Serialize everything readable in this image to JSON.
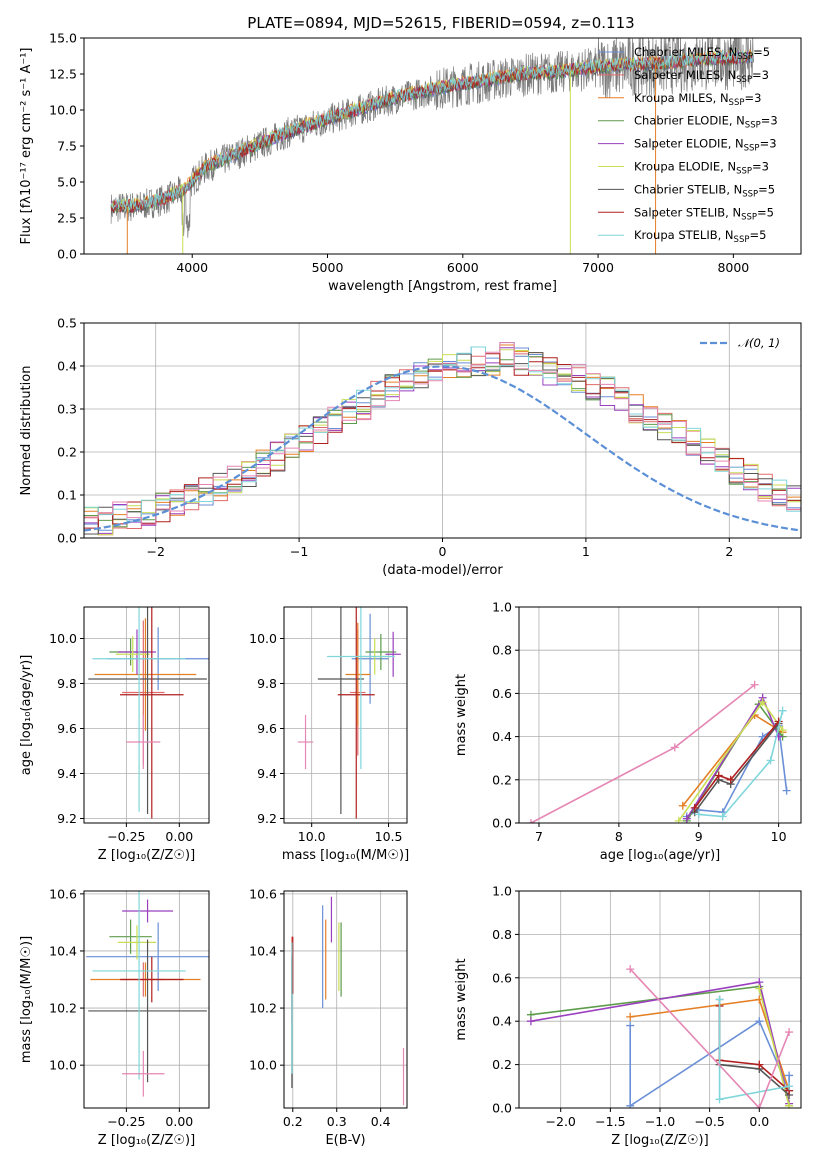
{
  "figure_title": "PLATE=0894, MJD=52615, FIBERID=0594, z=0.113",
  "colors": {
    "Chabrier MILES": "#6a8fd6",
    "Salpeter MILES": "#e06a6a",
    "Kroupa MILES": "#e57f24",
    "Chabrier ELODIE": "#5e9c4c",
    "Salpeter ELODIE": "#9a3fbf",
    "Kroupa ELODIE": "#c9de55",
    "Chabrier STELIB": "#555555",
    "Salpeter STELIB": "#b01f1f",
    "Kroupa STELIB": "#7fd6db",
    "pink": "#e586b4",
    "gaussian": "#5b8fd6"
  },
  "chart_data": [
    {
      "id": "spectrum",
      "type": "line",
      "title": "PLATE=0894, MJD=52615, FIBERID=0594, z=0.113",
      "xlabel": "wavelength [Angstrom, rest frame]",
      "ylabel": "Flux [fλ10⁻¹⁷ erg cm⁻² s⁻¹ A⁻¹]",
      "xlim": [
        3200,
        8500
      ],
      "ylim": [
        0,
        15
      ],
      "xticks": [
        "4000",
        "5000",
        "6000",
        "7000",
        "8000"
      ],
      "xtick_values": [
        4000,
        5000,
        6000,
        7000,
        8000
      ],
      "yticks": [
        "0.0",
        "2.5",
        "5.0",
        "7.5",
        "10.0",
        "12.5",
        "15.0"
      ],
      "ytick_values": [
        0,
        2.5,
        5,
        7.5,
        10,
        12.5,
        15
      ],
      "grid": false,
      "legend_position": "top-right",
      "legend": [
        {
          "label": "Chabrier MILES, N",
          "sub": "SSP",
          "tail": "=5",
          "color": "#6a8fd6"
        },
        {
          "label": "Salpeter MILES, N",
          "sub": "SSP",
          "tail": "=3",
          "color": "#e06a6a"
        },
        {
          "label": "Kroupa MILES, N",
          "sub": "SSP",
          "tail": "=3",
          "color": "#e57f24"
        },
        {
          "label": "Chabrier ELODIE, N",
          "sub": "SSP",
          "tail": "=3",
          "color": "#5e9c4c"
        },
        {
          "label": "Salpeter ELODIE, N",
          "sub": "SSP",
          "tail": "=3",
          "color": "#9a3fbf"
        },
        {
          "label": "Kroupa ELODIE, N",
          "sub": "SSP",
          "tail": "=3",
          "color": "#c9de55"
        },
        {
          "label": "Chabrier STELIB, N",
          "sub": "SSP",
          "tail": "=5",
          "color": "#555555"
        },
        {
          "label": "Salpeter STELIB, N",
          "sub": "SSP",
          "tail": "=5",
          "color": "#b01f1f"
        },
        {
          "label": "Kroupa STELIB, N",
          "sub": "SSP",
          "tail": "=5",
          "color": "#7fd6db"
        }
      ],
      "continuum": {
        "x": [
          3400,
          3600,
          3800,
          3950,
          4100,
          4300,
          4500,
          4700,
          4900,
          5100,
          5300,
          5500,
          5700,
          5900,
          6100,
          6300,
          6500,
          6700,
          6900,
          7100,
          7300,
          7500,
          7700,
          7900,
          8100
        ],
        "y": [
          3.2,
          3.3,
          3.8,
          4.5,
          6.0,
          6.8,
          7.6,
          8.4,
          9.0,
          9.6,
          10.2,
          10.8,
          11.2,
          11.6,
          11.9,
          12.2,
          12.5,
          12.6,
          12.8,
          13.0,
          13.1,
          13.2,
          13.4,
          13.5,
          13.6
        ]
      },
      "dropouts": [
        {
          "x": 3520,
          "y": 0.0
        },
        {
          "x": 3930,
          "y": 0.0
        },
        {
          "x": 6795,
          "y": 0.0
        },
        {
          "x": 7425,
          "y": 0.0
        }
      ]
    },
    {
      "id": "residuals",
      "type": "area",
      "xlabel": "(data-model)/error",
      "ylabel": "Normed distribution",
      "xlim": [
        -2.5,
        2.5
      ],
      "ylim": [
        0,
        0.5
      ],
      "xticks": [
        "−2",
        "−1",
        "0",
        "1",
        "2"
      ],
      "xtick_values": [
        -2,
        -1,
        0,
        1,
        2
      ],
      "yticks": [
        "0.0",
        "0.1",
        "0.2",
        "0.3",
        "0.4",
        "0.5"
      ],
      "ytick_values": [
        0,
        0.1,
        0.2,
        0.3,
        0.4,
        0.5
      ],
      "grid": true,
      "legend_position": "top-right",
      "legend": [
        {
          "label": "𝒩(0, 1)",
          "color": "#5b8fd6"
        }
      ],
      "bin_width": 0.1,
      "bin_start": -2.5,
      "base_hist": [
        0.04,
        0.04,
        0.05,
        0.05,
        0.06,
        0.07,
        0.08,
        0.09,
        0.11,
        0.12,
        0.14,
        0.15,
        0.17,
        0.19,
        0.21,
        0.23,
        0.25,
        0.27,
        0.29,
        0.31,
        0.33,
        0.35,
        0.37,
        0.38,
        0.39,
        0.4,
        0.4,
        0.41,
        0.41,
        0.42,
        0.41,
        0.4,
        0.39,
        0.38,
        0.37,
        0.35,
        0.34,
        0.32,
        0.3,
        0.28,
        0.26,
        0.24,
        0.22,
        0.2,
        0.18,
        0.16,
        0.14,
        0.12,
        0.11,
        0.09,
        0.08,
        0.07,
        0.06,
        0.05,
        0.04,
        0.04,
        0.03,
        0.03,
        0.03,
        0.02
      ]
    },
    {
      "id": "age_vs_Z",
      "type": "scatter",
      "xlabel": "Z [log₁₀(Z/Z☉)]",
      "ylabel": "age  [log₁₀(age/yr)]",
      "xlim": [
        -0.45,
        0.14
      ],
      "ylim": [
        9.18,
        10.14
      ],
      "xticks": [
        "−0.25",
        "0.00"
      ],
      "xtick_values": [
        -0.25,
        0.0
      ],
      "yticks": [
        "9.2",
        "9.4",
        "9.6",
        "9.8",
        "10.0"
      ],
      "ytick_values": [
        9.2,
        9.4,
        9.6,
        9.8,
        10.0
      ],
      "grid": true,
      "points": [
        {
          "x": -0.1,
          "y": 9.91,
          "xerr": 0.24,
          "yerr": 0.14,
          "color": "#6a8fd6"
        },
        {
          "x": -0.17,
          "y": 9.76,
          "xerr": 0.1,
          "yerr": 0.32,
          "color": "#e06a6a"
        },
        {
          "x": -0.16,
          "y": 9.84,
          "xerr": 0.24,
          "yerr": 0.25,
          "color": "#e57f24"
        },
        {
          "x": -0.23,
          "y": 9.94,
          "xerr": 0.1,
          "yerr": 0.06,
          "color": "#5e9c4c"
        },
        {
          "x": -0.2,
          "y": 9.94,
          "xerr": 0.09,
          "yerr": 0.1,
          "color": "#9a3fbf"
        },
        {
          "x": -0.22,
          "y": 9.93,
          "xerr": 0.08,
          "yerr": 0.08,
          "color": "#c9de55"
        },
        {
          "x": -0.15,
          "y": 9.82,
          "xerr": 0.28,
          "yerr": 0.6,
          "color": "#555555"
        },
        {
          "x": -0.13,
          "y": 9.75,
          "xerr": 0.15,
          "yerr": 0.55,
          "color": "#b01f1f"
        },
        {
          "x": -0.19,
          "y": 9.91,
          "xerr": 0.22,
          "yerr": 0.68,
          "color": "#7fd6db"
        },
        {
          "x": -0.17,
          "y": 9.54,
          "xerr": 0.08,
          "yerr": 0.12,
          "color": "#e586b4"
        }
      ]
    },
    {
      "id": "age_vs_mass",
      "type": "scatter",
      "xlabel": "mass [log₁₀(M/M☉)]",
      "ylabel": "",
      "xlim": [
        9.82,
        10.62
      ],
      "ylim": [
        9.18,
        10.14
      ],
      "xticks": [
        "10.0",
        "10.5"
      ],
      "xtick_values": [
        10.0,
        10.5
      ],
      "yticks": [
        "9.2",
        "9.4",
        "9.6",
        "9.8",
        "10.0"
      ],
      "ytick_values": [
        9.2,
        9.4,
        9.6,
        9.8,
        10.0
      ],
      "grid": true,
      "points": [
        {
          "x": 10.38,
          "y": 9.91,
          "xerr": 0.12,
          "yerr": 0.2,
          "color": "#6a8fd6"
        },
        {
          "x": 10.3,
          "y": 9.76,
          "xerr": 0.05,
          "yerr": 0.28,
          "color": "#e06a6a"
        },
        {
          "x": 10.3,
          "y": 9.84,
          "xerr": 0.08,
          "yerr": 0.23,
          "color": "#e57f24"
        },
        {
          "x": 10.45,
          "y": 9.94,
          "xerr": 0.1,
          "yerr": 0.08,
          "color": "#5e9c4c"
        },
        {
          "x": 10.53,
          "y": 9.93,
          "xerr": 0.05,
          "yerr": 0.1,
          "color": "#9a3fbf"
        },
        {
          "x": 10.41,
          "y": 9.92,
          "xerr": 0.1,
          "yerr": 0.08,
          "color": "#c9de55"
        },
        {
          "x": 10.19,
          "y": 9.82,
          "xerr": 0.15,
          "yerr": 0.6,
          "color": "#555555"
        },
        {
          "x": 10.29,
          "y": 9.75,
          "xerr": 0.12,
          "yerr": 0.55,
          "color": "#b01f1f"
        },
        {
          "x": 10.32,
          "y": 9.92,
          "xerr": 0.22,
          "yerr": 0.5,
          "color": "#7fd6db"
        },
        {
          "x": 9.96,
          "y": 9.54,
          "xerr": 0.05,
          "yerr": 0.12,
          "color": "#e586b4"
        }
      ]
    },
    {
      "id": "massweight_vs_age",
      "type": "line",
      "xlabel": "age  [log₁₀(age/yr)]",
      "ylabel": "mass weight",
      "xlim": [
        6.75,
        10.28
      ],
      "ylim": [
        0,
        1
      ],
      "xticks": [
        "7",
        "8",
        "9",
        "10"
      ],
      "xtick_values": [
        7,
        8,
        9,
        10
      ],
      "yticks": [
        "0.0",
        "0.2",
        "0.4",
        "0.6",
        "0.8",
        "1.0"
      ],
      "ytick_values": [
        0,
        0.2,
        0.4,
        0.6,
        0.8,
        1.0
      ],
      "grid": true,
      "series": [
        {
          "color": "#6a8fd6",
          "x": [
            8.85,
            9.0,
            9.3,
            9.8,
            10.0,
            10.1
          ],
          "y": [
            0.03,
            0.06,
            0.05,
            0.4,
            0.45,
            0.15
          ]
        },
        {
          "color": "#e57f24",
          "x": [
            8.8,
            9.7,
            10.05
          ],
          "y": [
            0.08,
            0.5,
            0.42
          ]
        },
        {
          "color": "#5e9c4c",
          "x": [
            8.85,
            9.75,
            10.05
          ],
          "y": [
            0.01,
            0.55,
            0.4
          ]
        },
        {
          "color": "#9a3fbf",
          "x": [
            8.85,
            9.8,
            10.0
          ],
          "y": [
            0.02,
            0.58,
            0.4
          ]
        },
        {
          "color": "#c9de55",
          "x": [
            8.75,
            9.8,
            10.05
          ],
          "y": [
            0.01,
            0.56,
            0.43
          ]
        },
        {
          "color": "#555555",
          "x": [
            8.95,
            9.25,
            9.4,
            10.0
          ],
          "y": [
            0.05,
            0.2,
            0.18,
            0.46
          ]
        },
        {
          "color": "#b01f1f",
          "x": [
            8.95,
            9.25,
            9.4,
            10.0
          ],
          "y": [
            0.07,
            0.22,
            0.2,
            0.47
          ]
        },
        {
          "color": "#7fd6db",
          "x": [
            9.0,
            9.3,
            9.9,
            10.05
          ],
          "y": [
            0.04,
            0.03,
            0.29,
            0.52
          ]
        },
        {
          "color": "#e586b4",
          "x": [
            6.9,
            8.7,
            9.7
          ],
          "y": [
            0.0,
            0.35,
            0.64
          ]
        }
      ]
    },
    {
      "id": "mass_vs_Z",
      "type": "scatter",
      "xlabel": "Z [log₁₀(Z/Z☉)]",
      "ylabel": "mass [log₁₀(M/M☉)]",
      "xlim": [
        -0.45,
        0.14
      ],
      "ylim": [
        9.85,
        10.61
      ],
      "xticks": [
        "−0.25",
        "0.00"
      ],
      "xtick_values": [
        -0.25,
        0.0
      ],
      "yticks": [
        "10.0",
        "10.2",
        "10.4",
        "10.6"
      ],
      "ytick_values": [
        10.0,
        10.2,
        10.4,
        10.6
      ],
      "grid": true,
      "points": [
        {
          "x": -0.1,
          "y": 10.38,
          "xerr": 0.34,
          "yerr": 0.12,
          "color": "#6a8fd6"
        },
        {
          "x": -0.17,
          "y": 10.3,
          "xerr": 0.1,
          "yerr": 0.06,
          "color": "#e06a6a"
        },
        {
          "x": -0.16,
          "y": 10.3,
          "xerr": 0.26,
          "yerr": 0.06,
          "color": "#e57f24"
        },
        {
          "x": -0.23,
          "y": 10.45,
          "xerr": 0.1,
          "yerr": 0.06,
          "color": "#5e9c4c"
        },
        {
          "x": -0.15,
          "y": 10.54,
          "xerr": 0.12,
          "yerr": 0.04,
          "color": "#9a3fbf"
        },
        {
          "x": -0.2,
          "y": 10.43,
          "xerr": 0.09,
          "yerr": 0.06,
          "color": "#c9de55"
        },
        {
          "x": -0.15,
          "y": 10.19,
          "xerr": 0.28,
          "yerr": 0.25,
          "color": "#555555"
        },
        {
          "x": -0.13,
          "y": 10.3,
          "xerr": 0.15,
          "yerr": 0.08,
          "color": "#b01f1f"
        },
        {
          "x": -0.19,
          "y": 10.33,
          "xerr": 0.22,
          "yerr": 0.38,
          "color": "#7fd6db"
        },
        {
          "x": -0.17,
          "y": 9.97,
          "xerr": 0.1,
          "yerr": 0.08,
          "color": "#e586b4"
        }
      ]
    },
    {
      "id": "mass_vs_EBV",
      "type": "scatter",
      "xlabel": "E(B-V)",
      "ylabel": "",
      "xlim": [
        0.18,
        0.46
      ],
      "ylim": [
        9.85,
        10.61
      ],
      "xticks": [
        "0.2",
        "0.3",
        "0.4"
      ],
      "xtick_values": [
        0.2,
        0.3,
        0.4
      ],
      "yticks": [
        "10.0",
        "10.2",
        "10.4",
        "10.6"
      ],
      "ytick_values": [
        10.0,
        10.2,
        10.4,
        10.6
      ],
      "grid": true,
      "points": [
        {
          "x": 0.268,
          "y": 10.38,
          "xerr": 0,
          "yerr": 0.18,
          "color": "#6a8fd6"
        },
        {
          "x": 0.198,
          "y": 10.3,
          "xerr": 0,
          "yerr": 0.15,
          "color": "#e06a6a"
        },
        {
          "x": 0.275,
          "y": 10.37,
          "xerr": 0,
          "yerr": 0.14,
          "color": "#e57f24"
        },
        {
          "x": 0.31,
          "y": 10.37,
          "xerr": 0,
          "yerr": 0.13,
          "color": "#5e9c4c"
        },
        {
          "x": 0.288,
          "y": 10.51,
          "xerr": 0,
          "yerr": 0.08,
          "color": "#9a3fbf"
        },
        {
          "x": 0.305,
          "y": 10.38,
          "xerr": 0,
          "yerr": 0.12,
          "color": "#c9de55"
        },
        {
          "x": 0.198,
          "y": 10.15,
          "xerr": 0,
          "yerr": 0.23,
          "color": "#555555"
        },
        {
          "x": 0.2,
          "y": 10.35,
          "xerr": 0,
          "yerr": 0.1,
          "color": "#b01f1f"
        },
        {
          "x": 0.198,
          "y": 10.2,
          "xerr": 0,
          "yerr": 0.23,
          "color": "#7fd6db"
        },
        {
          "x": 0.452,
          "y": 9.96,
          "xerr": 0,
          "yerr": 0.1,
          "color": "#e586b4"
        }
      ]
    },
    {
      "id": "massweight_vs_Z",
      "type": "line",
      "xlabel": "Z [log₁₀(Z/Z☉)]",
      "ylabel": "mass weight",
      "xlim": [
        -2.42,
        0.42
      ],
      "ylim": [
        0,
        1
      ],
      "xticks": [
        "−2.0",
        "−1.5",
        "−1.0",
        "−0.5",
        "0.0"
      ],
      "xtick_values": [
        -2.0,
        -1.5,
        -1.0,
        -0.5,
        0.0
      ],
      "yticks": [
        "0.0",
        "0.2",
        "0.4",
        "0.6",
        "0.8",
        "1.0"
      ],
      "ytick_values": [
        0,
        0.2,
        0.4,
        0.6,
        0.8,
        1.0
      ],
      "grid": true,
      "series": [
        {
          "color": "#6a8fd6",
          "x": [
            -1.3,
            -1.3,
            0.0,
            0.3,
            0.3
          ],
          "y": [
            0.38,
            0.01,
            0.4,
            0.08,
            0.15
          ]
        },
        {
          "color": "#e57f24",
          "x": [
            -1.3,
            0.0,
            0.3
          ],
          "y": [
            0.42,
            0.5,
            0.08
          ]
        },
        {
          "color": "#5e9c4c",
          "x": [
            -2.3,
            0.0,
            0.3
          ],
          "y": [
            0.43,
            0.56,
            0.01
          ]
        },
        {
          "color": "#9a3fbf",
          "x": [
            -2.3,
            0.0,
            0.3
          ],
          "y": [
            0.4,
            0.58,
            0.02
          ]
        },
        {
          "color": "#c9de55",
          "x": [
            0.0,
            0.3
          ],
          "y": [
            0.55,
            0.01
          ]
        },
        {
          "color": "#555555",
          "x": [
            -0.4,
            -0.4,
            0.0,
            0.3
          ],
          "y": [
            0.5,
            0.2,
            0.18,
            0.06
          ]
        },
        {
          "color": "#b01f1f",
          "x": [
            -0.4,
            -0.4,
            0.0,
            0.3
          ],
          "y": [
            0.47,
            0.22,
            0.2,
            0.08
          ]
        },
        {
          "color": "#7fd6db",
          "x": [
            -0.4,
            -0.4,
            0.3
          ],
          "y": [
            0.5,
            0.04,
            0.1
          ]
        },
        {
          "color": "#e586b4",
          "x": [
            -1.3,
            0.0,
            0.3
          ],
          "y": [
            0.64,
            0.0,
            0.35
          ]
        }
      ]
    }
  ]
}
